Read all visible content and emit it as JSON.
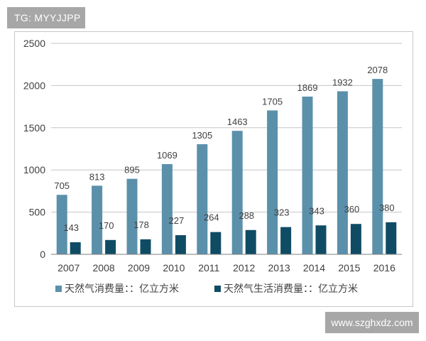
{
  "watermark_top": "TG: MYYJJPP",
  "watermark_bottom": "www.szghxdz.com",
  "colors": {
    "series1": "#5b90ab",
    "series2": "#0f4c64",
    "grid": "#c6c6c6",
    "axis": "#7f7f7f",
    "text": "#404040"
  },
  "chart_data": {
    "type": "bar",
    "title": "",
    "xlabel": "",
    "ylabel": "",
    "ylim": [
      0,
      2500
    ],
    "yticks": [
      "0",
      "500",
      "1000",
      "1500",
      "2000",
      "2500"
    ],
    "categories": [
      "2007",
      "2008",
      "2009",
      "2010",
      "2011",
      "2012",
      "2013",
      "2014",
      "2015",
      "2016"
    ],
    "series": [
      {
        "name": "天然气消费量：：亿立方米",
        "values": [
          705,
          813,
          895,
          1069,
          1305,
          1463,
          1705,
          1869,
          1932,
          2078
        ],
        "labels": [
          "705",
          "813",
          "895",
          "1069",
          "1305",
          "1463",
          "1705",
          "1869",
          "1932",
          "2078"
        ]
      },
      {
        "name": "天然气生活消费量：：亿立方米",
        "values": [
          143,
          170,
          178,
          227,
          264,
          288,
          323,
          343,
          360,
          380
        ],
        "labels": [
          "143",
          "170",
          "178",
          "227",
          "264",
          "288",
          "323",
          "343",
          "360",
          "380"
        ]
      }
    ],
    "legend_position": "bottom",
    "grid": true
  }
}
